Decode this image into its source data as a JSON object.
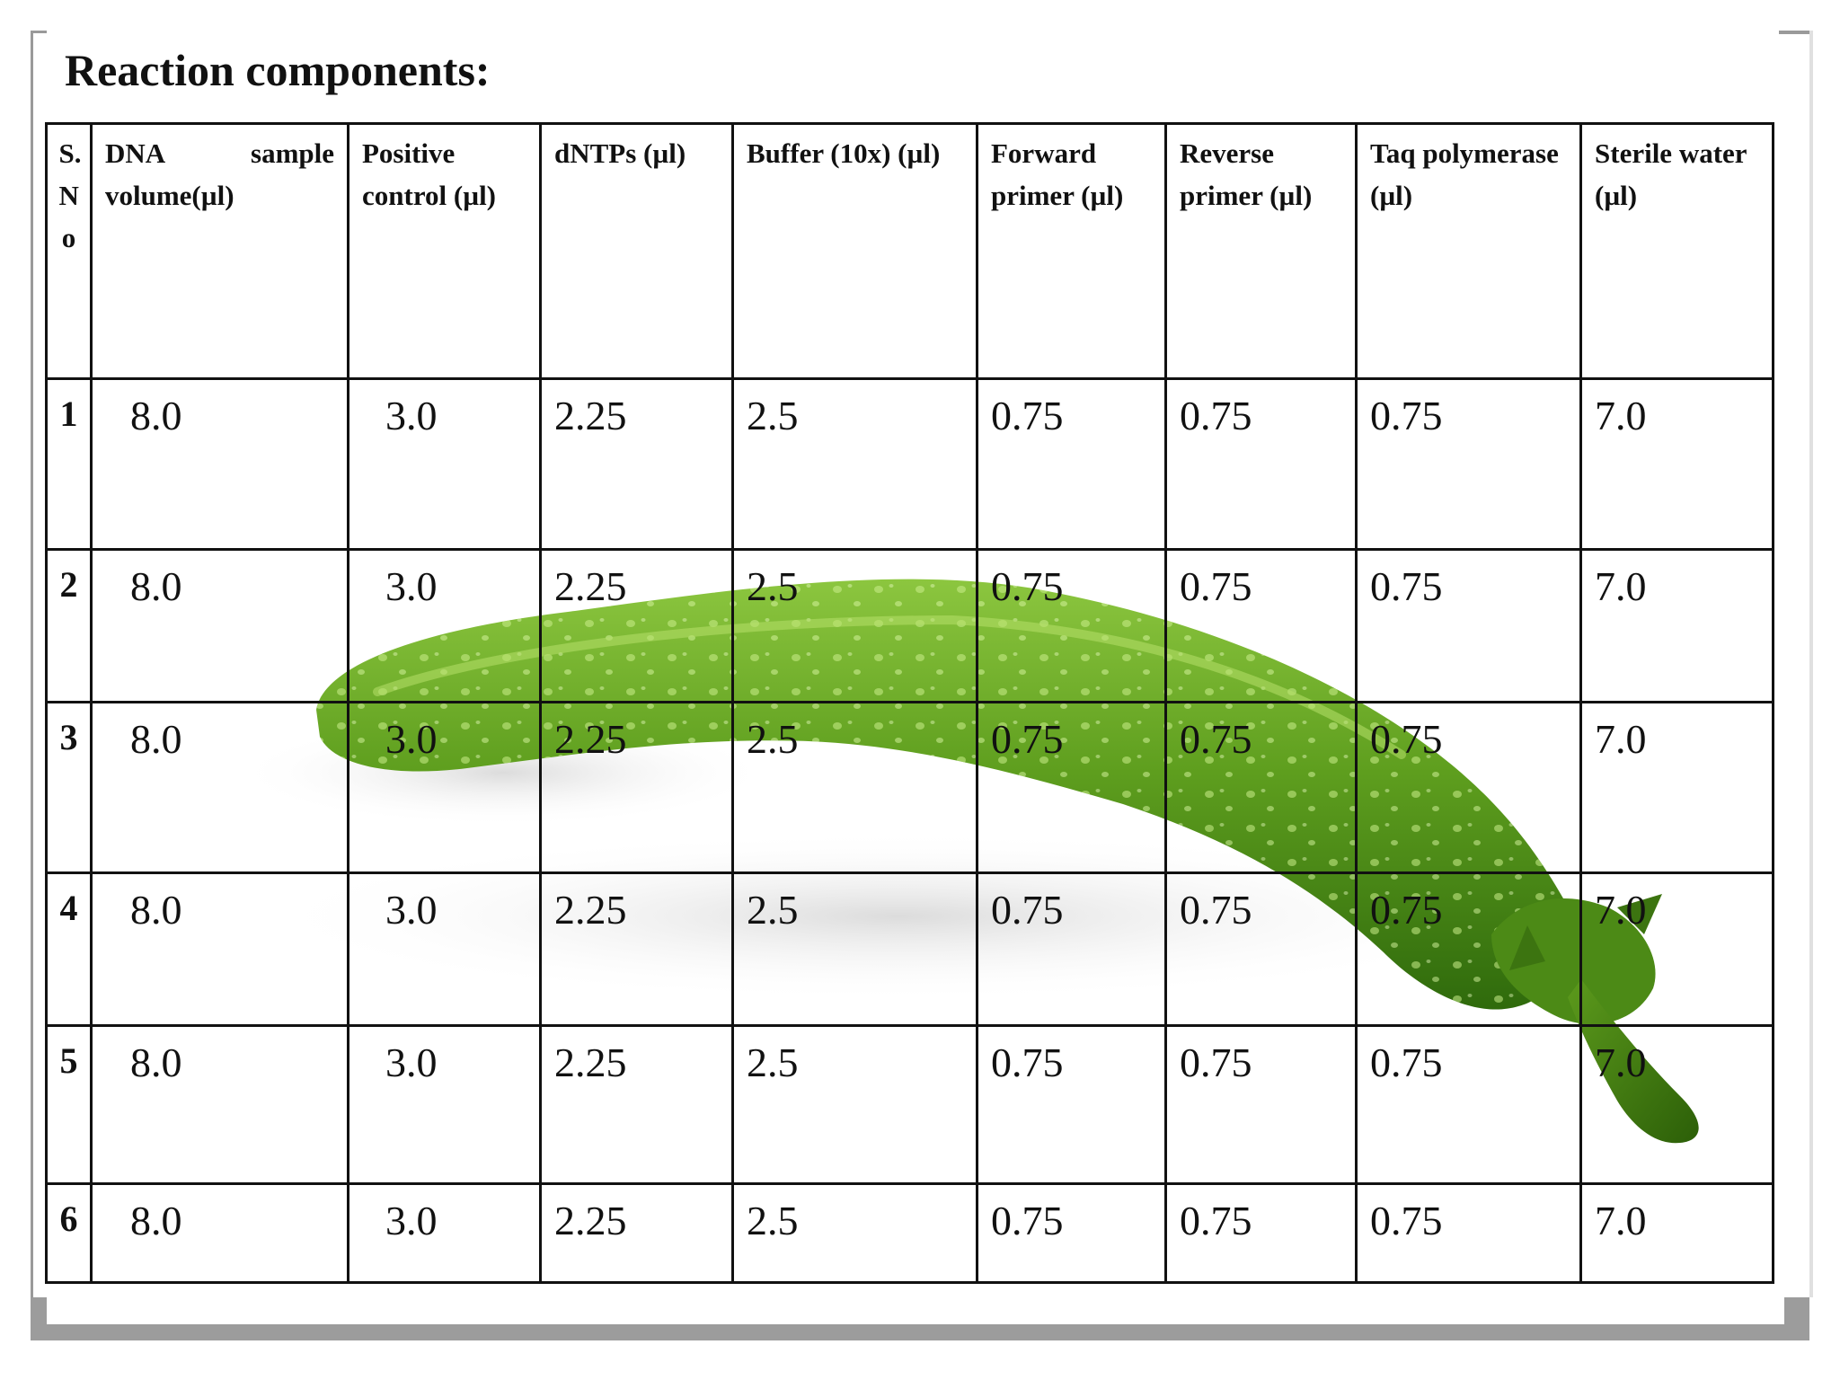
{
  "slide": {
    "title": "Reaction components:"
  },
  "table": {
    "headers": {
      "sno": "S.No",
      "dna_line1_a": "DNA",
      "dna_line1_b": "sample",
      "dna_line2": "volume(µl)",
      "positive": "Positive control (µl)",
      "dntps": "dNTPs (µl)",
      "buffer": "Buffer (10x) (µl)",
      "forward": "Forward primer (µl)",
      "reverse": "Reverse primer  (µl)",
      "taq": "Taq polymerase (µl)",
      "water": "Sterile water (µl)"
    },
    "rows": [
      {
        "sno": "1",
        "dna": "8.0",
        "positive": "3.0",
        "dntps": "2.25",
        "buffer": "2.5",
        "forward": "0.75",
        "reverse": "0.75",
        "taq": "0.75",
        "water": "7.0"
      },
      {
        "sno": "2",
        "dna": "8.0",
        "positive": "3.0",
        "dntps": "2.25",
        "buffer": "2.5",
        "forward": "0.75",
        "reverse": "0.75",
        "taq": "0.75",
        "water": "7.0"
      },
      {
        "sno": "3",
        "dna": "8.0",
        "positive": "3.0",
        "dntps": "2.25",
        "buffer": "2.5",
        "forward": "0.75",
        "reverse": "0.75",
        "taq": "0.75",
        "water": "7.0"
      },
      {
        "sno": "4",
        "dna": "8.0",
        "positive": "3.0",
        "dntps": "2.25",
        "buffer": "2.5",
        "forward": "0.75",
        "reverse": "0.75",
        "taq": "0.75",
        "water": "7.0"
      },
      {
        "sno": "5",
        "dna": "8.0",
        "positive": "3.0",
        "dntps": "2.25",
        "buffer": "2.5",
        "forward": "0.75",
        "reverse": "0.75",
        "taq": "0.75",
        "water": "7.0"
      },
      {
        "sno": "6",
        "dna": "8.0",
        "positive": "3.0",
        "dntps": "2.25",
        "buffer": "2.5",
        "forward": "0.75",
        "reverse": "0.75",
        "taq": "0.75",
        "water": "7.0"
      }
    ]
  },
  "background_image": {
    "subject": "green-chili-pepper",
    "color_dark": "#3f7f12",
    "color_light": "#7fbf2a"
  }
}
